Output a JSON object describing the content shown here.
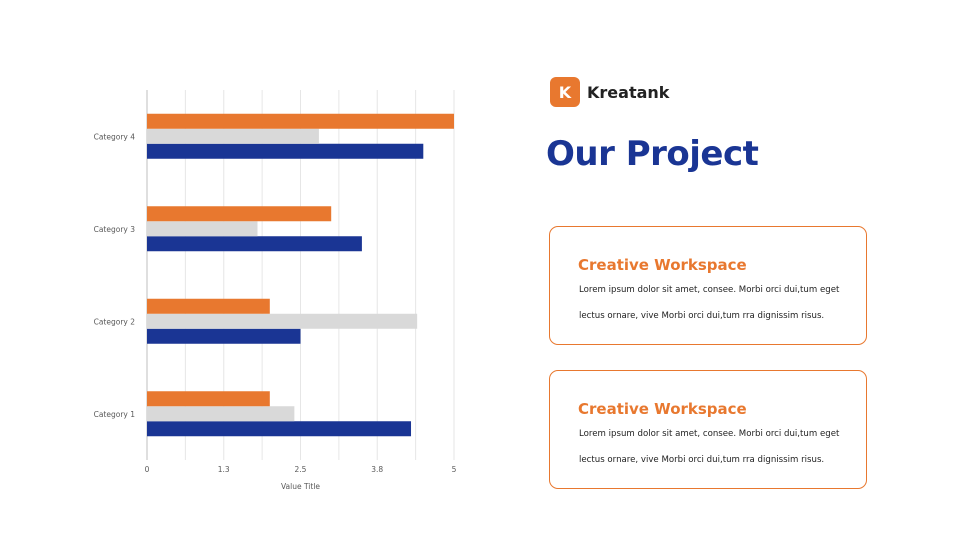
{
  "brand": {
    "logo_letter": "K",
    "name": "Kreatank"
  },
  "page_title": "Our Project",
  "cards": [
    {
      "title": "Creative Workspace",
      "lines": [
        "Lorem ipsum dolor sit amet, consee. Morbi orci dui,tum eget",
        "lectus ornare, vive Morbi orci dui,tum rra dignissim risus."
      ]
    },
    {
      "title": "Creative Workspace",
      "lines": [
        "Lorem ipsum dolor sit amet, consee. Morbi orci dui,tum eget",
        "lectus ornare, vive Morbi orci dui,tum rra dignissim risus."
      ]
    }
  ],
  "colors": {
    "accent_orange": "#E8782F",
    "navy": "#1A3594",
    "light_gray": "#D9D9D9"
  },
  "chart_data": {
    "type": "bar",
    "orientation": "horizontal",
    "categories": [
      "Category 1",
      "Category 2",
      "Category 3",
      "Category 4"
    ],
    "series": [
      {
        "values": [
          4.3,
          2.5,
          3.5,
          4.5
        ],
        "color": "#1A3594"
      },
      {
        "values": [
          2.4,
          4.4,
          1.8,
          2.8
        ],
        "color": "#D9D9D9"
      },
      {
        "values": [
          2.0,
          2.0,
          3.0,
          5.0
        ],
        "color": "#E8782F"
      }
    ],
    "xlabel": "Value Title",
    "ylabel": "",
    "xlim": [
      0,
      5
    ],
    "x_tick_labels": [
      "0",
      "1.3",
      "2.5",
      "3.8",
      "5"
    ],
    "grid": true,
    "legend": "none"
  }
}
